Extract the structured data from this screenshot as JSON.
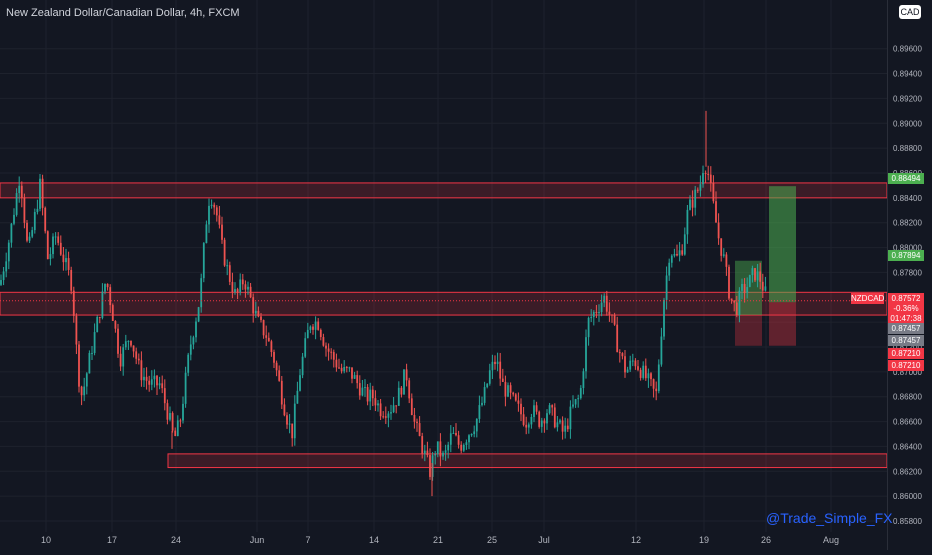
{
  "header": {
    "title": "New Zealand Dollar/Canadian Dollar, 4h, FXCM",
    "currency_badge": "CAD"
  },
  "symbol_label": "NZDCAD",
  "price_tags": {
    "green_top": "0.88494",
    "green_mid": "0.87894",
    "current_price": "0.87572",
    "change": "-0.36%",
    "countdown": "01:47:38",
    "grey_a": "0.87457",
    "grey_b": "0.87457",
    "red_a": "0.87210",
    "red_b": "0.87210"
  },
  "watermark": "@Trade_Simple_FX",
  "colors": {
    "background": "#131722",
    "bull": "#26a69a",
    "bear": "#ef5350",
    "zone": "#f23645",
    "tp_green": "#4caf50",
    "sl_red": "#f23645",
    "axis_text": "#b2b5be",
    "current_line": "#f23645"
  },
  "chart_data": {
    "type": "candlestick",
    "timeframe": "4h",
    "title": "New Zealand Dollar/Canadian Dollar, 4h, FXCM",
    "ylim": [
      0.8578,
      0.9015
    ],
    "y_ticks": [
      "0.89600",
      "0.89400",
      "0.89200",
      "0.89000",
      "0.88800",
      "0.88600",
      "0.88400",
      "0.88200",
      "0.88000",
      "0.87800",
      "0.87400",
      "0.87200",
      "0.87000",
      "0.86800",
      "0.86600",
      "0.86400",
      "0.86200",
      "0.86000",
      "0.85800"
    ],
    "x_ticks": [
      "10",
      "17",
      "24",
      "Jun",
      "7",
      "14",
      "21",
      "25",
      "Jul",
      "12",
      "19",
      "26",
      "Aug"
    ],
    "price_path": [
      [
        0,
        0.877
      ],
      [
        10,
        0.881
      ],
      [
        20,
        0.886
      ],
      [
        28,
        0.8795
      ],
      [
        36,
        0.883
      ],
      [
        40,
        0.885
      ],
      [
        48,
        0.879
      ],
      [
        56,
        0.881
      ],
      [
        64,
        0.879
      ],
      [
        72,
        0.877
      ],
      [
        78,
        0.87
      ],
      [
        82,
        0.868
      ],
      [
        92,
        0.872
      ],
      [
        100,
        0.875
      ],
      [
        106,
        0.8775
      ],
      [
        112,
        0.875
      ],
      [
        120,
        0.871
      ],
      [
        130,
        0.873
      ],
      [
        140,
        0.87
      ],
      [
        150,
        0.869
      ],
      [
        160,
        0.869
      ],
      [
        170,
        0.866
      ],
      [
        174,
        0.8645
      ],
      [
        180,
        0.866
      ],
      [
        190,
        0.872
      ],
      [
        200,
        0.876
      ],
      [
        206,
        0.882
      ],
      [
        210,
        0.8845
      ],
      [
        216,
        0.883
      ],
      [
        222,
        0.88
      ],
      [
        228,
        0.878
      ],
      [
        236,
        0.876
      ],
      [
        244,
        0.8775
      ],
      [
        250,
        0.876
      ],
      [
        258,
        0.874
      ],
      [
        266,
        0.873
      ],
      [
        274,
        0.871
      ],
      [
        282,
        0.868
      ],
      [
        288,
        0.866
      ],
      [
        292,
        0.865
      ],
      [
        300,
        0.87
      ],
      [
        310,
        0.874
      ],
      [
        318,
        0.874
      ],
      [
        326,
        0.872
      ],
      [
        334,
        0.871
      ],
      [
        342,
        0.87
      ],
      [
        350,
        0.87
      ],
      [
        358,
        0.869
      ],
      [
        366,
        0.868
      ],
      [
        374,
        0.868
      ],
      [
        380,
        0.867
      ],
      [
        390,
        0.867
      ],
      [
        398,
        0.868
      ],
      [
        406,
        0.87
      ],
      [
        414,
        0.866
      ],
      [
        422,
        0.864
      ],
      [
        430,
        0.862
      ],
      [
        436,
        0.864
      ],
      [
        444,
        0.863
      ],
      [
        452,
        0.865
      ],
      [
        460,
        0.864
      ],
      [
        468,
        0.865
      ],
      [
        476,
        0.866
      ],
      [
        484,
        0.868
      ],
      [
        490,
        0.87
      ],
      [
        496,
        0.871
      ],
      [
        502,
        0.869
      ],
      [
        510,
        0.868
      ],
      [
        518,
        0.867
      ],
      [
        526,
        0.866
      ],
      [
        532,
        0.867
      ],
      [
        540,
        0.866
      ],
      [
        548,
        0.867
      ],
      [
        556,
        0.866
      ],
      [
        564,
        0.865
      ],
      [
        572,
        0.867
      ],
      [
        580,
        0.868
      ],
      [
        588,
        0.874
      ],
      [
        596,
        0.875
      ],
      [
        604,
        0.876
      ],
      [
        612,
        0.874
      ],
      [
        618,
        0.872
      ],
      [
        626,
        0.87
      ],
      [
        634,
        0.871
      ],
      [
        642,
        0.87
      ],
      [
        650,
        0.869
      ],
      [
        656,
        0.868
      ],
      [
        660,
        0.872
      ],
      [
        664,
        0.876
      ],
      [
        670,
        0.88
      ],
      [
        676,
        0.879
      ],
      [
        682,
        0.88
      ],
      [
        688,
        0.883
      ],
      [
        694,
        0.884
      ],
      [
        700,
        0.885
      ],
      [
        704,
        0.887
      ],
      [
        708,
        0.886
      ],
      [
        712,
        0.884
      ],
      [
        718,
        0.881
      ],
      [
        724,
        0.879
      ],
      [
        730,
        0.876
      ],
      [
        736,
        0.875
      ],
      [
        742,
        0.8765
      ],
      [
        748,
        0.877
      ],
      [
        754,
        0.878
      ],
      [
        760,
        0.8775
      ],
      [
        768,
        0.8757
      ]
    ],
    "spikes": [
      [
        706,
        0.891
      ],
      [
        432,
        0.86
      ],
      [
        172,
        0.8638
      ]
    ],
    "resistance_zone": [
      0.884,
      0.8852
    ],
    "support_zone": [
      0.87457,
      0.8764
    ],
    "low_zone": [
      0.8623,
      0.8634
    ],
    "long_position": {
      "entry": 0.8756,
      "stop": 0.8721,
      "target": 0.88494
    },
    "small_position": {
      "entry": 0.87457,
      "stop": 0.8721,
      "target": 0.87894
    },
    "current_price": 0.87572
  }
}
